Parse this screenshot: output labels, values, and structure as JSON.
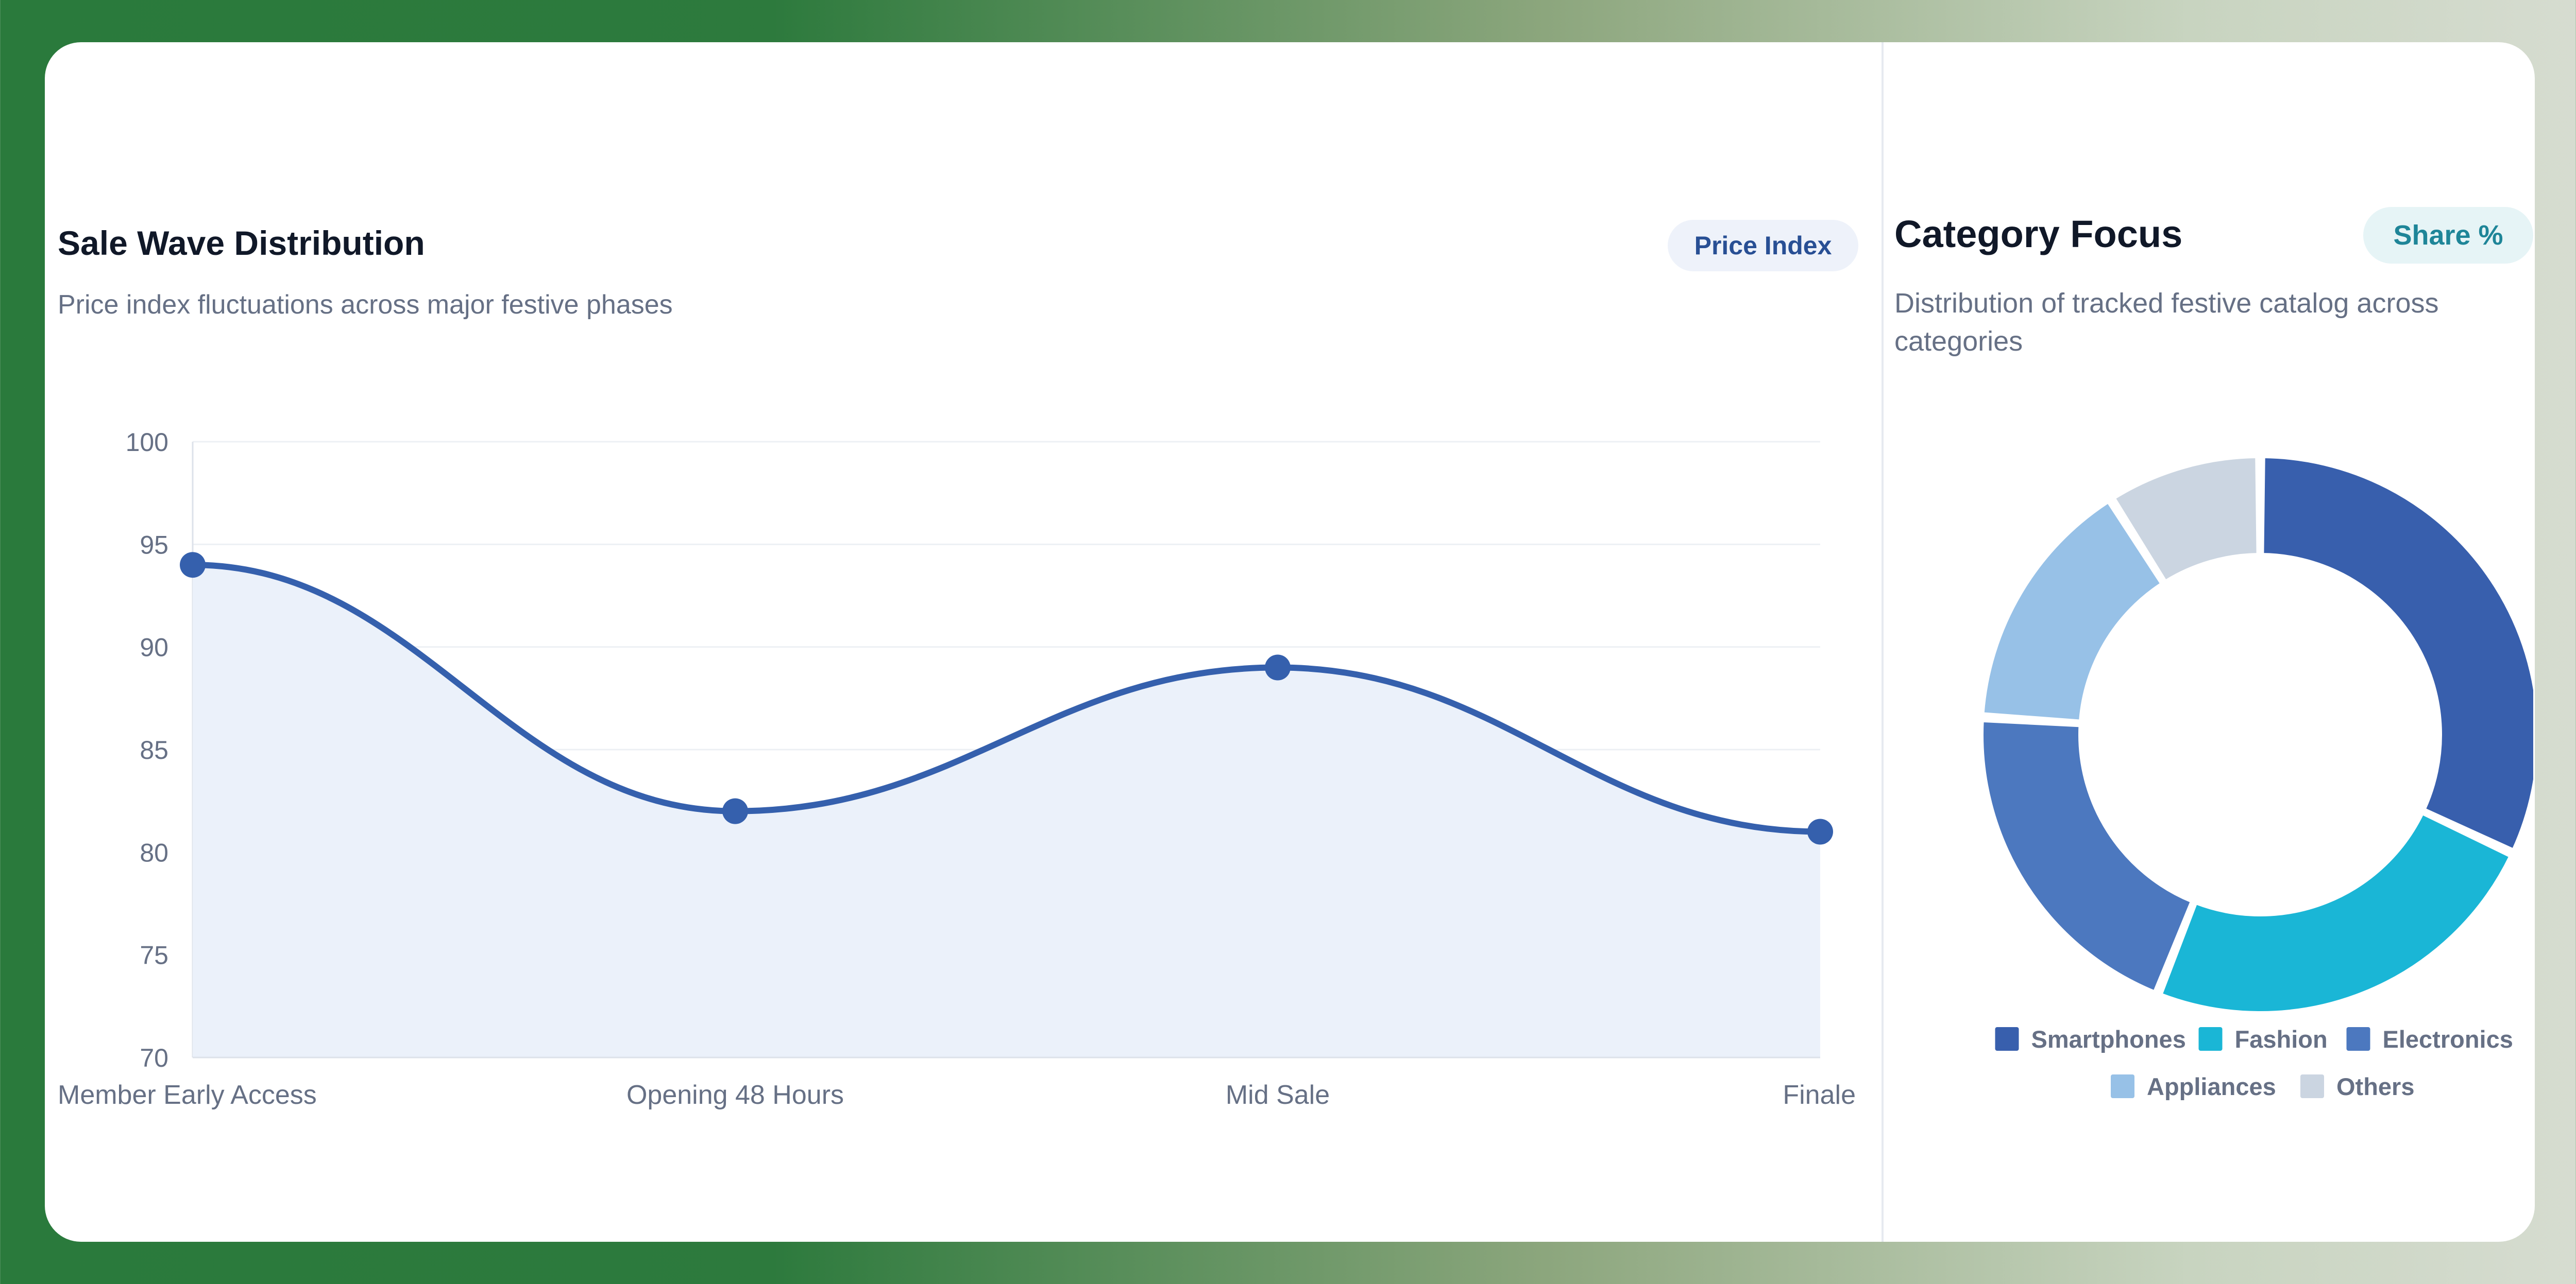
{
  "left_panel": {
    "title": "Sale Wave Distribution",
    "subtitle": "Price index fluctuations across major festive phases",
    "badge": "Price Index"
  },
  "right_panel": {
    "title": "Category Focus",
    "subtitle": "Distribution of tracked festive catalog across categories",
    "badge": "Share %"
  },
  "colors": {
    "line": "#3560ad",
    "area": "#ebf1fa",
    "grid": "#edf0f4",
    "axis_text": "#667085"
  },
  "chart_data": [
    {
      "type": "area",
      "categories": [
        "Member Early Access",
        "Opening 48 Hours",
        "Mid Sale",
        "Finale"
      ],
      "series": [
        {
          "values": [
            94,
            82,
            89,
            81
          ]
        }
      ],
      "yticks": [
        70,
        75,
        80,
        85,
        90,
        95,
        100
      ],
      "ylim": [
        70,
        100
      ],
      "grid": true,
      "title": "Sale Wave Distribution"
    },
    {
      "type": "pie",
      "donut": true,
      "title": "Category Focus",
      "slices": [
        {
          "label": "Smartphones",
          "value": 32,
          "color": "#385fad"
        },
        {
          "label": "Fashion",
          "value": 24,
          "color": "#1ab6d6"
        },
        {
          "label": "Electronics",
          "value": 20,
          "color": "#4c78bf"
        },
        {
          "label": "Appliances",
          "value": 15,
          "color": "#97c1e7"
        },
        {
          "label": "Others",
          "value": 9,
          "color": "#cbd5e1"
        }
      ],
      "legend": "bottom"
    }
  ]
}
